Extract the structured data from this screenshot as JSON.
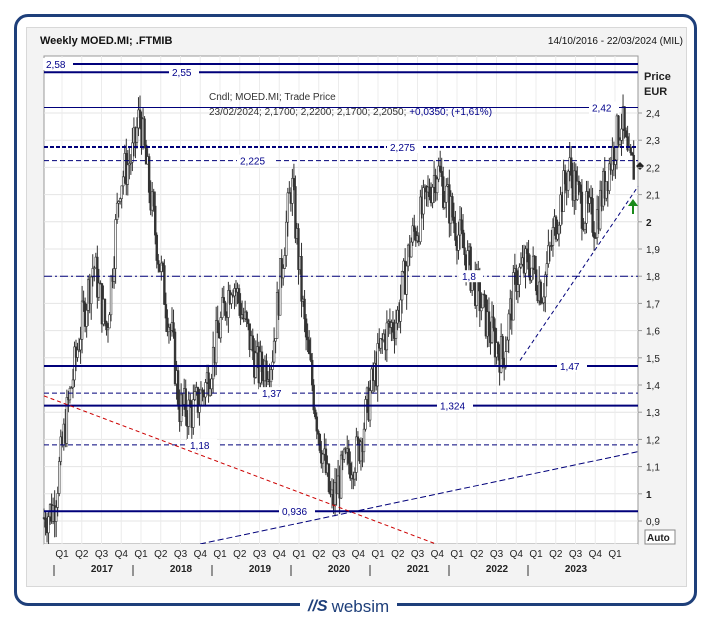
{
  "header": {
    "title": "Weekly MOED.MI; .FTMIB",
    "date_range": "14/10/2016 - 22/03/2024 (MIL)"
  },
  "logo": {
    "mark": "//S",
    "text": "websim"
  },
  "colors": {
    "frame": "#1e3f7a",
    "level": "#00007a",
    "text": "#00008b",
    "candle": "#333333",
    "arrow": "#1a8a1a",
    "trend_red": "#cc0000"
  },
  "chart_data": {
    "type": "candlestick",
    "ylabel": "Price",
    "yunit": "EUR",
    "ylim": [
      0.84,
      2.58
    ],
    "yticks": [
      "0,9",
      "1",
      "1,1",
      "1,2",
      "1,3",
      "1,4",
      "1,5",
      "1,6",
      "1,7",
      "1,8",
      "1,9",
      "2",
      "2,1",
      "2,2",
      "2,3",
      "2,4"
    ],
    "quarter_labels": [
      "Q1",
      "Q2",
      "Q3",
      "Q4",
      "Q1",
      "Q2",
      "Q3",
      "Q4",
      "Q1",
      "Q2",
      "Q3",
      "Q4",
      "Q1",
      "Q2",
      "Q3",
      "Q4",
      "Q1",
      "Q2",
      "Q3",
      "Q4",
      "Q1",
      "Q2",
      "Q3",
      "Q4",
      "Q1",
      "Q2",
      "Q3",
      "Q4",
      "Q1"
    ],
    "years": [
      "2017",
      "2018",
      "2019",
      "2020",
      "2021",
      "2022",
      "2023"
    ],
    "auto_label": "Auto",
    "legend_line1": "Cndl; MOED.MI; Trade Price",
    "legend_line2_prefix": "23/02/2024; 2,1700; 2,2200; 2,1700; 2,2050; ",
    "legend_line2_change": "+0,0350; (+1,61%)",
    "levels": [
      {
        "value": 2.58,
        "label": "2,58",
        "style": "solid"
      },
      {
        "value": 2.55,
        "label": "2,55",
        "style": "solid"
      },
      {
        "value": 2.42,
        "label": "2,42",
        "style": "solid-thin"
      },
      {
        "value": 2.275,
        "label": "2,275",
        "style": "dash-bold"
      },
      {
        "value": 2.225,
        "label": "2,225",
        "style": "dash"
      },
      {
        "value": 1.8,
        "label": "1,8",
        "style": "dashdot"
      },
      {
        "value": 1.47,
        "label": "1,47",
        "style": "solid"
      },
      {
        "value": 1.37,
        "label": "1,37",
        "style": "dash"
      },
      {
        "value": 1.324,
        "label": "1,324",
        "style": "solid"
      },
      {
        "value": 1.18,
        "label": "1,18",
        "style": "dash"
      },
      {
        "value": 0.936,
        "label": "0,936",
        "style": "solid"
      }
    ],
    "last_price": 2.205,
    "price_path": [
      [
        "2016-10",
        0.9
      ],
      [
        "2016-12",
        0.95
      ],
      [
        "2017-02",
        1.3
      ],
      [
        "2017-04",
        1.6
      ],
      [
        "2017-06",
        1.85
      ],
      [
        "2017-08",
        1.6
      ],
      [
        "2017-10",
        2.15
      ],
      [
        "2017-12",
        2.25
      ],
      [
        "2018-01",
        2.4
      ],
      [
        "2018-02",
        2.2
      ],
      [
        "2018-04",
        1.85
      ],
      [
        "2018-06",
        1.55
      ],
      [
        "2018-07",
        1.32
      ],
      [
        "2018-09",
        1.3
      ],
      [
        "2018-11",
        1.4
      ],
      [
        "2019-01",
        1.6
      ],
      [
        "2019-03",
        1.8
      ],
      [
        "2019-05",
        1.62
      ],
      [
        "2019-07",
        1.45
      ],
      [
        "2019-09",
        1.5
      ],
      [
        "2019-11",
        1.95
      ],
      [
        "2019-12",
        2.15
      ],
      [
        "2020-02",
        1.6
      ],
      [
        "2020-04",
        1.25
      ],
      [
        "2020-06",
        0.96
      ],
      [
        "2020-08",
        1.1
      ],
      [
        "2020-10",
        1.15
      ],
      [
        "2020-12",
        1.38
      ],
      [
        "2021-02",
        1.58
      ],
      [
        "2021-04",
        1.65
      ],
      [
        "2021-06",
        1.92
      ],
      [
        "2021-08",
        2.05
      ],
      [
        "2021-10",
        2.2
      ],
      [
        "2021-12",
        2.05
      ],
      [
        "2022-02",
        1.9
      ],
      [
        "2022-04",
        1.75
      ],
      [
        "2022-06",
        1.6
      ],
      [
        "2022-08",
        1.5
      ],
      [
        "2022-10",
        1.8
      ],
      [
        "2022-12",
        1.85
      ],
      [
        "2023-02",
        1.75
      ],
      [
        "2023-04",
        2.0
      ],
      [
        "2023-06",
        2.2
      ],
      [
        "2023-08",
        2.05
      ],
      [
        "2023-10",
        2.0
      ],
      [
        "2023-12",
        2.2
      ],
      [
        "2024-02",
        2.38
      ],
      [
        "2024-03",
        2.2
      ]
    ]
  }
}
